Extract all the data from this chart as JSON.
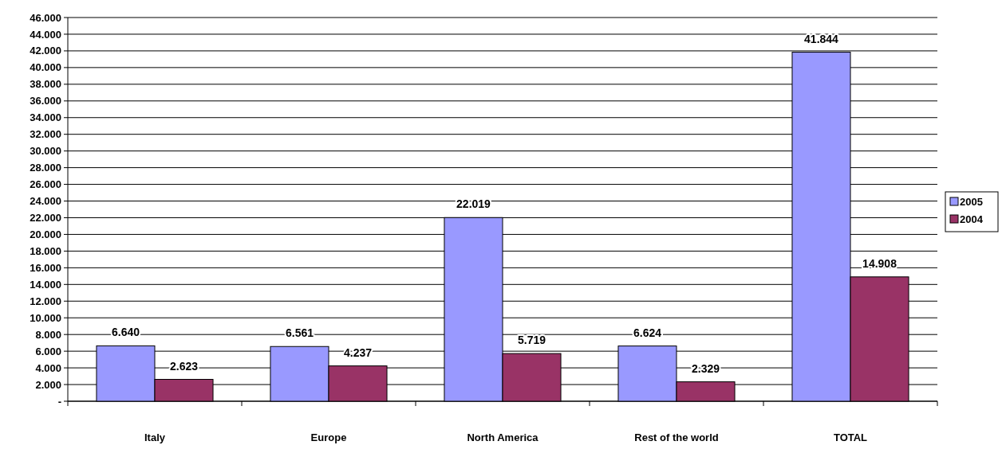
{
  "chart_data": {
    "type": "bar",
    "categories": [
      "Italy",
      "Europe",
      "North America",
      "Rest of the world",
      "TOTAL"
    ],
    "series": [
      {
        "name": "2005",
        "color": "#9999ff",
        "values": [
          6640,
          6561,
          22019,
          6624,
          41844
        ],
        "value_labels": [
          "6.640",
          "6.561",
          "22.019",
          "6.624",
          "41.844"
        ]
      },
      {
        "name": "2004",
        "color": "#993366",
        "values": [
          2623,
          4237,
          5719,
          2329,
          14908
        ],
        "value_labels": [
          "2.623",
          "4.237",
          "5.719",
          "2.329",
          "14.908"
        ]
      }
    ],
    "ylim": [
      0,
      46000
    ],
    "yticks": [
      {
        "value": 0,
        "label": "-"
      },
      {
        "value": 2000,
        "label": "2.000"
      },
      {
        "value": 4000,
        "label": "4.000"
      },
      {
        "value": 6000,
        "label": "6.000"
      },
      {
        "value": 8000,
        "label": "8.000"
      },
      {
        "value": 10000,
        "label": "10.000"
      },
      {
        "value": 12000,
        "label": "12.000"
      },
      {
        "value": 14000,
        "label": "14.000"
      },
      {
        "value": 16000,
        "label": "16.000"
      },
      {
        "value": 18000,
        "label": "18.000"
      },
      {
        "value": 20000,
        "label": "20.000"
      },
      {
        "value": 22000,
        "label": "22.000"
      },
      {
        "value": 24000,
        "label": "24.000"
      },
      {
        "value": 26000,
        "label": "26.000"
      },
      {
        "value": 28000,
        "label": "28.000"
      },
      {
        "value": 30000,
        "label": "30.000"
      },
      {
        "value": 32000,
        "label": "32.000"
      },
      {
        "value": 34000,
        "label": "34.000"
      },
      {
        "value": 36000,
        "label": "36.000"
      },
      {
        "value": 38000,
        "label": "38.000"
      },
      {
        "value": 40000,
        "label": "40.000"
      },
      {
        "value": 42000,
        "label": "42.000"
      },
      {
        "value": 44000,
        "label": "44.000"
      },
      {
        "value": 46000,
        "label": "46.000"
      }
    ],
    "grid": "y",
    "legend": "right"
  }
}
